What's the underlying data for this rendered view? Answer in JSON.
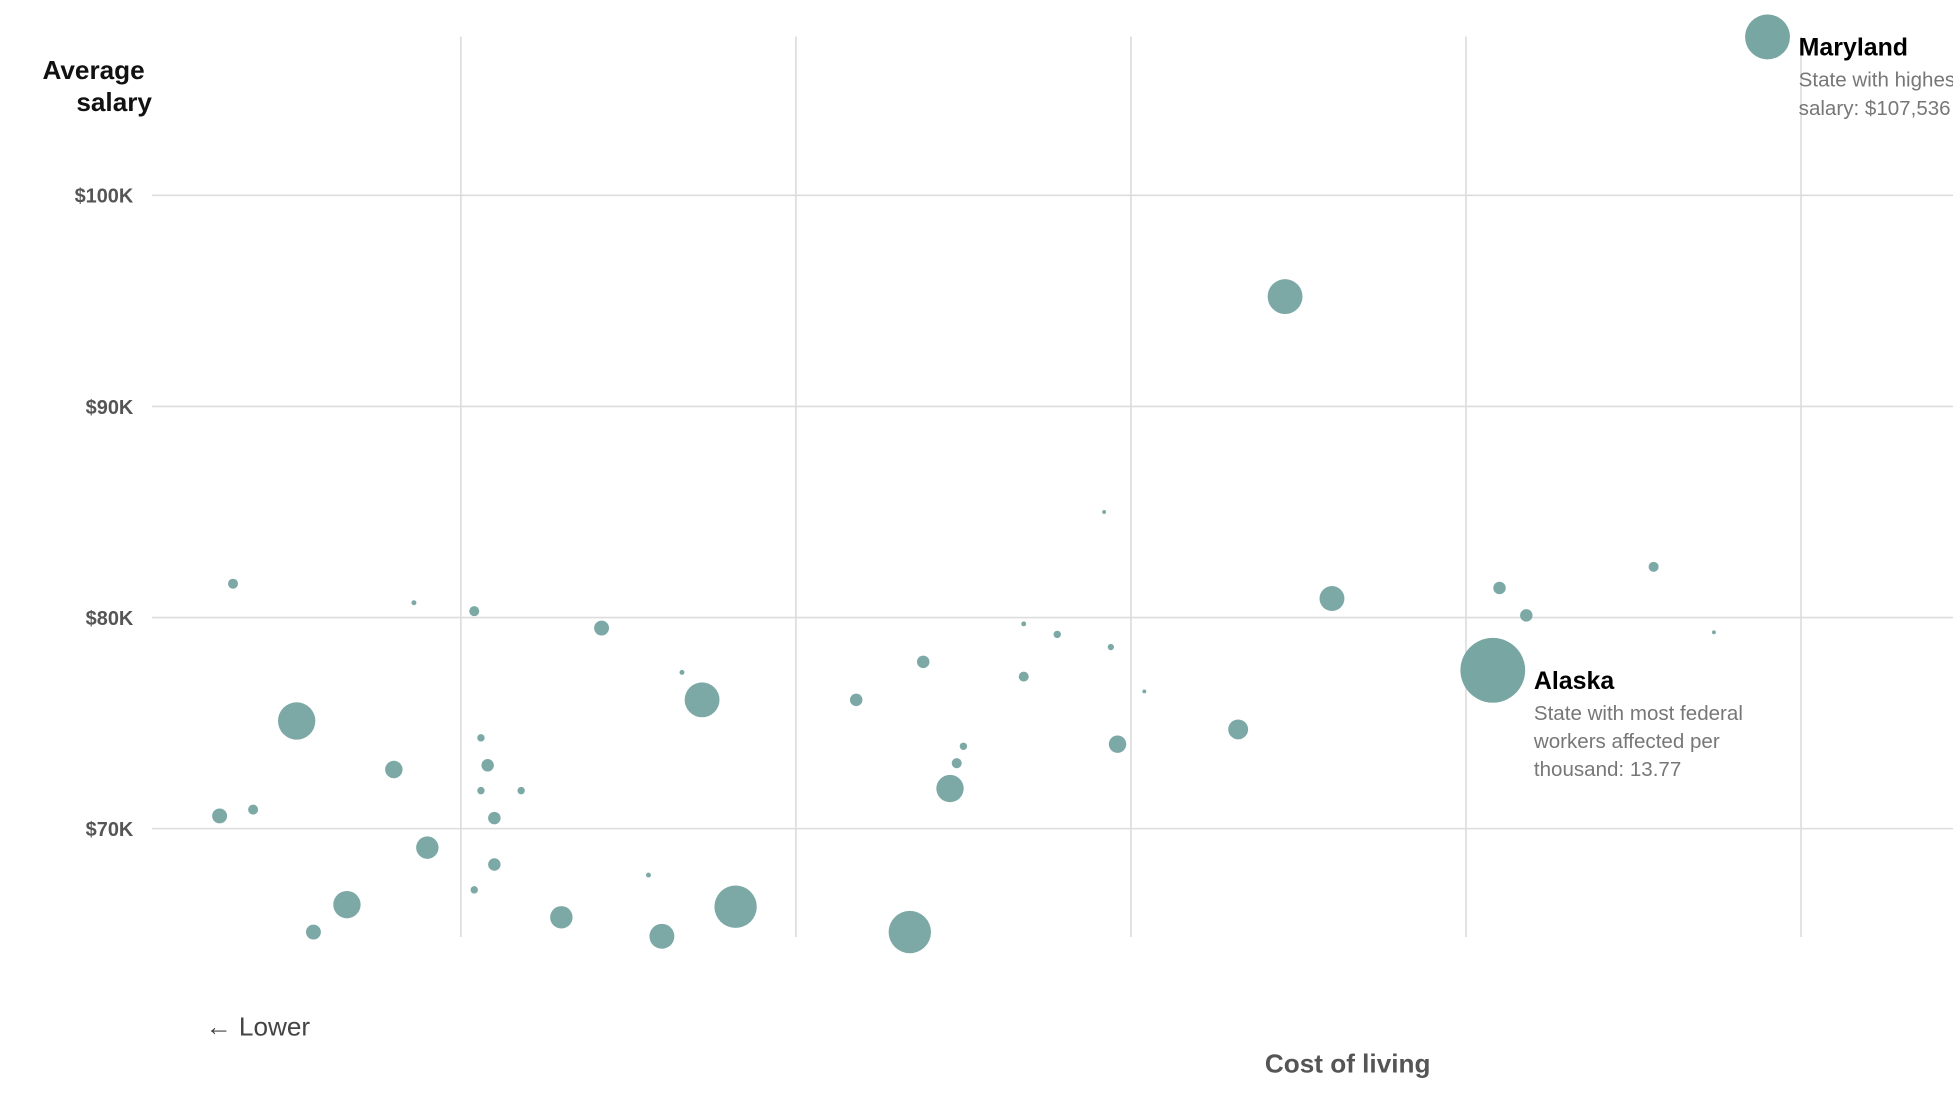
{
  "chart_data": {
    "type": "scatter",
    "subtype": "bubble",
    "title": "",
    "ylabel_lines": [
      "Average",
      "salary"
    ],
    "xlabel": "Cost of living",
    "x_direction_label": "← Lower",
    "yticks": [
      {
        "value": 70,
        "label": "$70K"
      },
      {
        "value": 80,
        "label": "$80K"
      },
      {
        "value": 90,
        "label": "$90K"
      },
      {
        "value": 100,
        "label": "$100K"
      }
    ],
    "xgrid": [
      90,
      100,
      110,
      120,
      130
    ],
    "xlim": [
      80.8,
      138.3
    ],
    "ylim": [
      60.9,
      109.2
    ],
    "y_units": "thousand USD",
    "size_units": "federal workers affected per thousand",
    "color": "#78a6a3",
    "points": [
      [
        83.2,
        81.6,
        0.33
      ],
      [
        88.6,
        80.7,
        0.08
      ],
      [
        90.4,
        80.3,
        0.33
      ],
      [
        94.2,
        79.5,
        0.73
      ],
      [
        85.1,
        75.1,
        4.58
      ],
      [
        88.0,
        72.8,
        1.0
      ],
      [
        82.8,
        70.6,
        0.73
      ],
      [
        83.8,
        70.9,
        0.33
      ],
      [
        89.0,
        69.1,
        1.65
      ],
      [
        86.6,
        66.4,
        2.46
      ],
      [
        85.6,
        65.1,
        0.73
      ],
      [
        90.6,
        74.3,
        0.18
      ],
      [
        90.8,
        73.0,
        0.51
      ],
      [
        90.6,
        71.8,
        0.18
      ],
      [
        91.8,
        71.8,
        0.18
      ],
      [
        91.0,
        70.5,
        0.51
      ],
      [
        91.0,
        68.3,
        0.51
      ],
      [
        90.4,
        67.1,
        0.18
      ],
      [
        93.0,
        65.8,
        1.65
      ],
      [
        95.6,
        67.8,
        0.08
      ],
      [
        96.0,
        64.9,
        2.04
      ],
      [
        96.6,
        77.4,
        0.08
      ],
      [
        97.2,
        76.1,
        3.99
      ],
      [
        98.2,
        66.3,
        5.89
      ],
      [
        101.8,
        76.1,
        0.51
      ],
      [
        103.4,
        65.1,
        5.89
      ],
      [
        103.8,
        77.9,
        0.51
      ],
      [
        104.6,
        71.9,
        2.46
      ],
      [
        104.8,
        73.1,
        0.33
      ],
      [
        105.0,
        73.9,
        0.18
      ],
      [
        106.8,
        77.2,
        0.33
      ],
      [
        106.8,
        79.7,
        0.08
      ],
      [
        107.8,
        79.2,
        0.18
      ],
      [
        109.2,
        85.0,
        0.05
      ],
      [
        109.4,
        78.6,
        0.13
      ],
      [
        109.6,
        74.0,
        1.0
      ],
      [
        110.4,
        76.5,
        0.05
      ],
      [
        113.2,
        74.7,
        1.3
      ],
      [
        114.6,
        95.2,
        3.99
      ],
      [
        116.0,
        80.9,
        2.04
      ],
      [
        121.0,
        81.4,
        0.51
      ],
      [
        121.8,
        80.1,
        0.51
      ],
      [
        125.6,
        82.4,
        0.33
      ],
      [
        127.4,
        79.3,
        0.05
      ]
    ],
    "annotations": [
      {
        "name": "Alaska",
        "x": 120.8,
        "y": 77.5,
        "size": 13.77,
        "lines": [
          "State with most federal",
          "workers affected per",
          "thousand: 13.77"
        ]
      },
      {
        "name": "Maryland",
        "x": 129.0,
        "y": 107.5,
        "size": 6.6,
        "lines": [
          "State with highest average",
          "salary: $107,536"
        ]
      }
    ]
  }
}
